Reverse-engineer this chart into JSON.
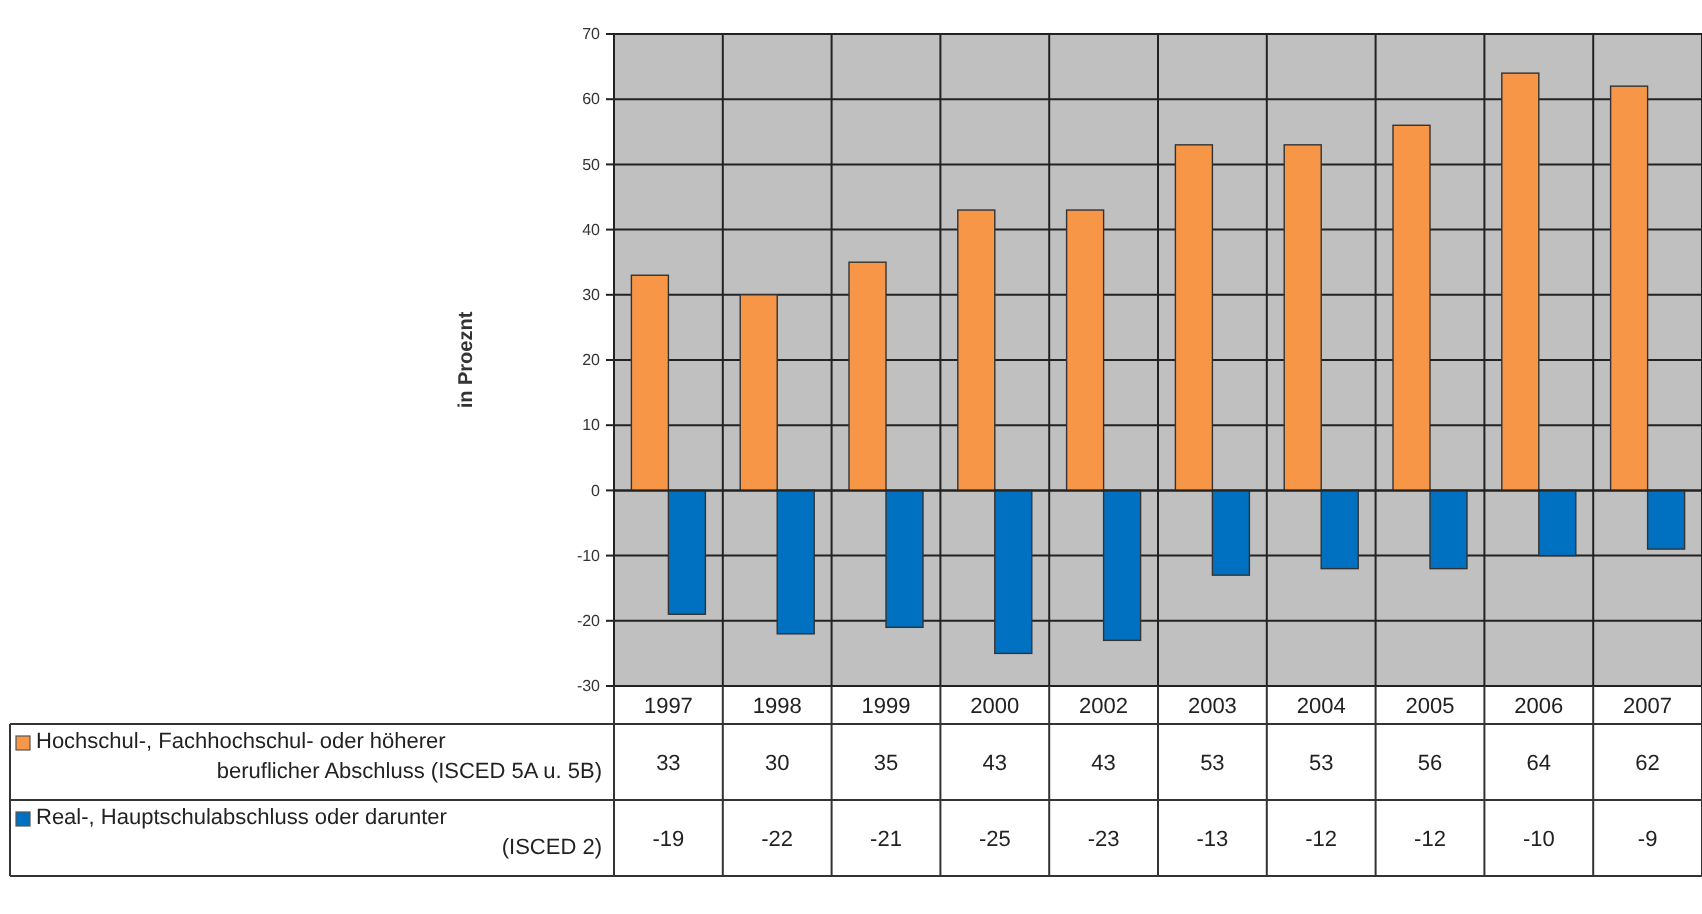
{
  "chart_data": {
    "type": "bar",
    "ylabel": "in Proeznt",
    "categories": [
      "1997",
      "1998",
      "1999",
      "2000",
      "2002",
      "2003",
      "2004",
      "2005",
      "2006",
      "2007"
    ],
    "series": [
      {
        "name": "Hochschul-, Fachhochschul- oder höherer beruflicher Abschluss (ISCED 5A u. 5B)",
        "color": "#f79646",
        "values": [
          33,
          30,
          35,
          43,
          43,
          53,
          53,
          56,
          64,
          62
        ]
      },
      {
        "name": "Real-, Hauptschulabschluss oder darunter (ISCED 2)",
        "color": "#0070c0",
        "values": [
          -19,
          -22,
          -21,
          -25,
          -23,
          -13,
          -12,
          -12,
          -10,
          -9
        ]
      }
    ],
    "ylim": [
      -30,
      70
    ],
    "yticks": [
      -30,
      -20,
      -10,
      0,
      10,
      20,
      30,
      40,
      50,
      60,
      70
    ],
    "grid": true,
    "legend": "bottom left",
    "data_labels": true
  }
}
